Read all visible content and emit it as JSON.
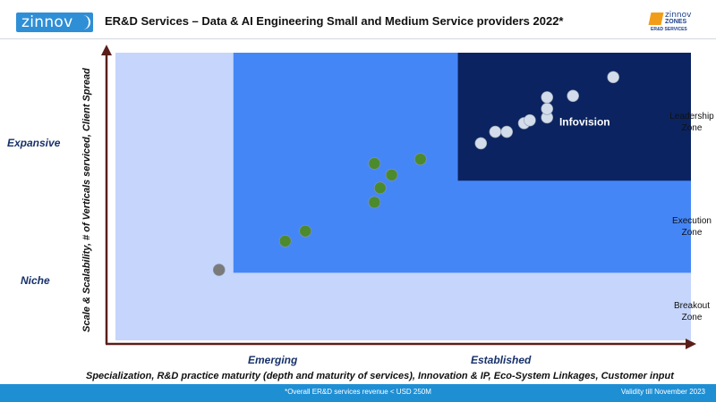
{
  "header": {
    "logo_left_text": "zinnov",
    "title": "ER&D Services – Data & AI Engineering Small and Medium Service providers 2022*",
    "logo_right": {
      "line1": "zinnov",
      "line2": "ZONES",
      "line3": "ER&D SERVICES"
    }
  },
  "colors": {
    "breakout_zone": "#c5d5fb",
    "execution_zone": "#4586f7",
    "leadership_zone": "#0b2360",
    "established_point": "#d3dcea",
    "growing_point": "#4c8a2e",
    "niche_point": "#7a7a7a",
    "axis": "#5a1e1a",
    "footer": "#1f8fd4"
  },
  "chart_data": {
    "type": "scatter",
    "y_zone_labels": [
      "Expansive",
      "Niche"
    ],
    "x_zone_labels": [
      "Emerging",
      "Established"
    ],
    "yaxis_title": "Scale & Scalability, # of Verticals serviced, Client Spread",
    "xaxis_title": "Specialization, R&D practice maturity (depth and maturity of services), Innovation & IP, Eco-System Linkages, Customer input",
    "xlim": [
      0,
      100
    ],
    "ylim": [
      0,
      100
    ],
    "grid": false,
    "zones": [
      {
        "name": "Breakout Zone",
        "label_lines": [
          "Breakout",
          "Zone"
        ],
        "x_range": [
          0,
          100
        ],
        "y_range": [
          0,
          100
        ],
        "color_key": "breakout_zone"
      },
      {
        "name": "Execution Zone",
        "label_lines": [
          "Execution",
          "Zone"
        ],
        "x_range": [
          20.5,
          100
        ],
        "y_range": [
          23.5,
          100
        ],
        "color_key": "execution_zone"
      },
      {
        "name": "Leadership Zone",
        "label_lines": [
          "Leadership",
          "Zone"
        ],
        "x_range": [
          59.5,
          100
        ],
        "y_range": [
          55.5,
          100
        ]
      }
    ],
    "points": [
      {
        "x": 18.0,
        "y": 24.5,
        "group": "niche"
      },
      {
        "x": 29.5,
        "y": 34.5,
        "group": "growing"
      },
      {
        "x": 33.0,
        "y": 38.0,
        "group": "growing"
      },
      {
        "x": 45.0,
        "y": 48.0,
        "group": "growing"
      },
      {
        "x": 46.0,
        "y": 53.0,
        "group": "growing"
      },
      {
        "x": 48.0,
        "y": 57.5,
        "group": "growing"
      },
      {
        "x": 45.0,
        "y": 61.5,
        "group": "growing"
      },
      {
        "x": 53.0,
        "y": 63.0,
        "group": "growing"
      },
      {
        "x": 63.5,
        "y": 68.5,
        "group": "established"
      },
      {
        "x": 66.0,
        "y": 72.5,
        "group": "established"
      },
      {
        "x": 68.0,
        "y": 72.5,
        "group": "established"
      },
      {
        "x": 71.0,
        "y": 75.5,
        "group": "established"
      },
      {
        "x": 72.0,
        "y": 76.5,
        "group": "established",
        "label": "Infovision"
      },
      {
        "x": 75.0,
        "y": 77.5,
        "group": "established"
      },
      {
        "x": 75.0,
        "y": 80.5,
        "group": "established"
      },
      {
        "x": 75.0,
        "y": 84.5,
        "group": "established"
      },
      {
        "x": 79.5,
        "y": 85.0,
        "group": "established"
      },
      {
        "x": 86.5,
        "y": 91.5,
        "group": "established"
      }
    ],
    "annotations": [
      {
        "text": "Infovision"
      }
    ]
  },
  "footer": {
    "note": "*Overall  ER&D services revenue  < USD 250M",
    "validity": "Validity till November 2023"
  }
}
